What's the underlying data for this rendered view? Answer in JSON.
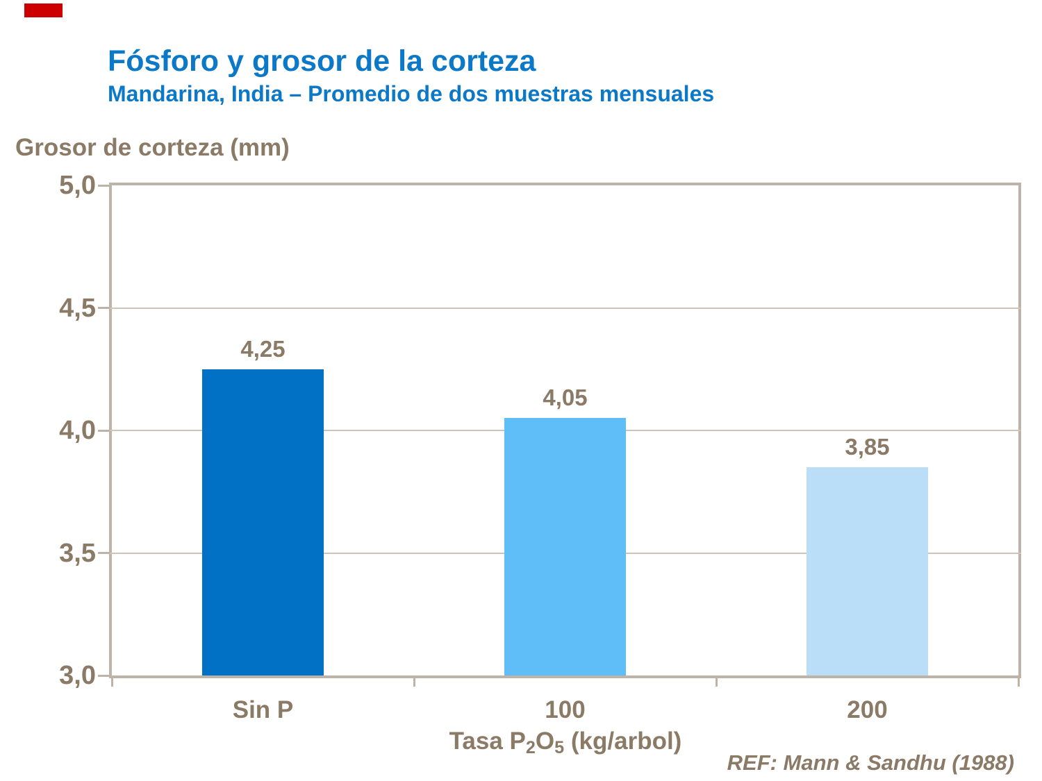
{
  "slide": {
    "title": "Fósforo y grosor de la corteza",
    "subtitle": "Mandarina, India – Promedio de dos muestras mensuales",
    "reference": "REF: Mann & Sandhu (1988)",
    "corner_marker_color": "#CC0000"
  },
  "colors": {
    "title_blue": "#0B78C8",
    "label_brown": "#8A7A66",
    "gridline": "#CCC4BA",
    "axis_frame": "#BEB3A8",
    "background": "#FFFFFF"
  },
  "chart_data": {
    "type": "bar",
    "title": "Fósforo y grosor de la corteza",
    "subtitle": "Mandarina, India – Promedio de dos muestras mensuales",
    "categories": [
      "Sin P",
      "100",
      "200"
    ],
    "values": [
      4.25,
      4.05,
      3.85
    ],
    "value_labels": [
      "4,25",
      "4,05",
      "3,85"
    ],
    "bar_colors": [
      "#0071C5",
      "#5FBDF8",
      "#BADDF8"
    ],
    "ylabel": "Grosor de corteza (mm)",
    "xlabel": "Tasa P2O5 (kg/arbol)",
    "xlabel_parts": [
      {
        "text": "Tasa P",
        "subscript": false
      },
      {
        "text": "2",
        "subscript": true
      },
      {
        "text": "O",
        "subscript": false
      },
      {
        "text": "5",
        "subscript": true
      },
      {
        "text": " (kg/arbol)",
        "subscript": false
      }
    ],
    "ylim": [
      3.0,
      5.0
    ],
    "yticks": [
      {
        "value": 5.0,
        "label": "5,0"
      },
      {
        "value": 4.5,
        "label": "4,5"
      },
      {
        "value": 4.0,
        "label": "4,0"
      },
      {
        "value": 3.5,
        "label": "3,5"
      },
      {
        "value": 3.0,
        "label": "3,0"
      }
    ],
    "grid": "horizontal",
    "legend": "none",
    "decimal_separator": ","
  }
}
